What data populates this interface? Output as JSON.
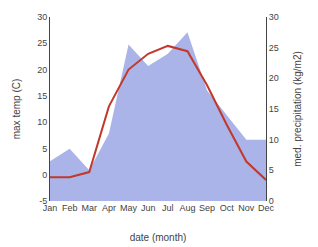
{
  "chart_data": {
    "type": "line",
    "categories": [
      "Jan",
      "Feb",
      "Mar",
      "Apr",
      "May",
      "Jun",
      "Jul",
      "Aug",
      "Sep",
      "Oct",
      "Nov",
      "Dec"
    ],
    "series": [
      {
        "type": "area",
        "color": "#aab4e8",
        "axis": "y2",
        "values": [
          6.5,
          8.5,
          5.0,
          11.0,
          25.5,
          22.0,
          24.0,
          27.5,
          18.0,
          14.0,
          10.0,
          10.0
        ]
      },
      {
        "type": "line",
        "color": "#c0392b",
        "values": [
          -0.5,
          -0.5,
          0.5,
          13.0,
          20.0,
          23.0,
          24.5,
          23.5,
          17.0,
          9.5,
          2.5,
          -1.0
        ]
      }
    ],
    "xlabel": "date (month)",
    "ylabel": "max temp (C)",
    "y2label": "med. precipitation (kg/m2)",
    "ylim": [
      -5,
      30
    ],
    "yticks": [
      -5,
      0,
      5,
      10,
      15,
      20,
      25,
      30
    ],
    "y2lim": [
      0,
      30
    ],
    "y2ticks": [
      0,
      5,
      10,
      15,
      20,
      25,
      30
    ],
    "grid": false
  }
}
